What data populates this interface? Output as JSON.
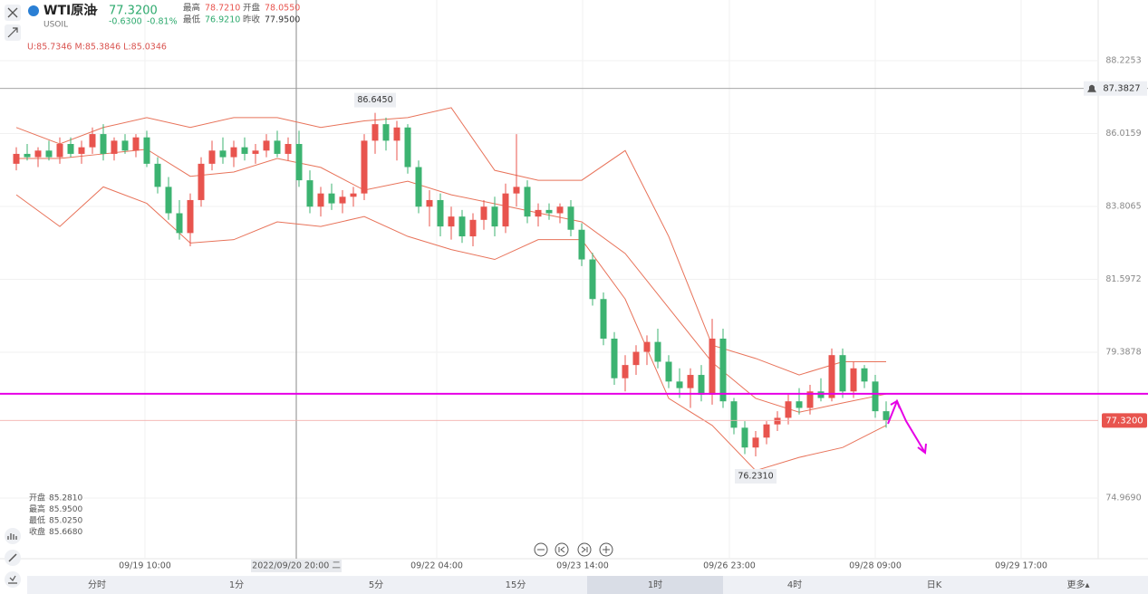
{
  "chart_data": {
    "type": "candlestick",
    "title": "WTI原油",
    "symbol": "USOIL",
    "price": "77.3200",
    "change": "-0.6300",
    "change_pct": "-0.81%",
    "stats": [
      {
        "label": "最高",
        "value": "78.7210",
        "color": "#e8544e"
      },
      {
        "label": "开盘",
        "value": "78.0550",
        "color": "#e8544e"
      },
      {
        "label": "最低",
        "value": "76.9210",
        "color": "#2eaa6e"
      },
      {
        "label": "昨收",
        "value": "77.9500",
        "color": "#333333"
      }
    ],
    "indicator": "U:85.7346   M:85.3846   L:85.0346",
    "info_panel": [
      {
        "label": "开盘",
        "value": "85.2810"
      },
      {
        "label": "最高",
        "value": "85.9500"
      },
      {
        "label": "最低",
        "value": "85.0250"
      },
      {
        "label": "收盘",
        "value": "85.6680"
      }
    ],
    "up_color": "#e8544e",
    "down_color": "#3cb371",
    "candles": [
      [
        85.1,
        85.6,
        84.9,
        85.4
      ],
      [
        85.4,
        85.7,
        85.2,
        85.3
      ],
      [
        85.3,
        85.6,
        85.0,
        85.5
      ],
      [
        85.5,
        85.8,
        85.2,
        85.3
      ],
      [
        85.3,
        85.9,
        85.1,
        85.7
      ],
      [
        85.7,
        85.9,
        85.3,
        85.4
      ],
      [
        85.4,
        85.8,
        85.1,
        85.6
      ],
      [
        85.6,
        86.2,
        85.4,
        86.0
      ],
      [
        86.0,
        86.3,
        85.2,
        85.4
      ],
      [
        85.4,
        85.9,
        85.2,
        85.8
      ],
      [
        85.8,
        86.0,
        85.4,
        85.5
      ],
      [
        85.5,
        86.0,
        85.3,
        85.9
      ],
      [
        85.9,
        86.1,
        85.0,
        85.1
      ],
      [
        85.1,
        85.3,
        84.2,
        84.4
      ],
      [
        84.4,
        84.7,
        83.4,
        83.6
      ],
      [
        83.6,
        84.0,
        82.8,
        83.0
      ],
      [
        83.0,
        84.2,
        82.6,
        84.0
      ],
      [
        84.0,
        85.3,
        83.8,
        85.1
      ],
      [
        85.1,
        85.8,
        84.9,
        85.5
      ],
      [
        85.5,
        85.9,
        85.1,
        85.3
      ],
      [
        85.3,
        85.8,
        85.0,
        85.6
      ],
      [
        85.6,
        85.9,
        85.2,
        85.4
      ],
      [
        85.4,
        85.7,
        85.1,
        85.5
      ],
      [
        85.5,
        86.0,
        85.3,
        85.8
      ],
      [
        85.8,
        86.1,
        85.3,
        85.4
      ],
      [
        85.4,
        85.9,
        85.2,
        85.7
      ],
      [
        85.7,
        86.1,
        84.4,
        84.6
      ],
      [
        84.6,
        84.9,
        83.6,
        83.8
      ],
      [
        83.8,
        84.4,
        83.5,
        84.2
      ],
      [
        84.2,
        84.5,
        83.7,
        83.9
      ],
      [
        83.9,
        84.3,
        83.6,
        84.1
      ],
      [
        84.1,
        84.4,
        83.8,
        84.2
      ],
      [
        84.2,
        86.0,
        84.0,
        85.8
      ],
      [
        85.8,
        86.645,
        85.4,
        86.3
      ],
      [
        86.3,
        86.5,
        85.5,
        85.8
      ],
      [
        85.8,
        86.4,
        85.2,
        86.2
      ],
      [
        86.2,
        86.3,
        84.8,
        85.0
      ],
      [
        85.0,
        85.2,
        83.6,
        83.8
      ],
      [
        83.8,
        84.3,
        83.2,
        84.0
      ],
      [
        84.0,
        84.2,
        82.9,
        83.2
      ],
      [
        83.2,
        83.8,
        82.8,
        83.5
      ],
      [
        83.5,
        83.7,
        82.7,
        82.9
      ],
      [
        82.9,
        83.6,
        82.6,
        83.4
      ],
      [
        83.4,
        84.0,
        83.1,
        83.8
      ],
      [
        83.8,
        84.1,
        82.9,
        83.2
      ],
      [
        83.2,
        84.5,
        83.0,
        84.2
      ],
      [
        84.2,
        86.0,
        83.8,
        84.4
      ],
      [
        84.4,
        84.6,
        83.3,
        83.5
      ],
      [
        83.5,
        83.9,
        83.2,
        83.7
      ],
      [
        83.7,
        83.9,
        83.4,
        83.6
      ],
      [
        83.6,
        83.9,
        83.3,
        83.8
      ],
      [
        83.8,
        84.0,
        82.9,
        83.1
      ],
      [
        83.1,
        83.3,
        82.0,
        82.2
      ],
      [
        82.2,
        82.4,
        80.8,
        81.0
      ],
      [
        81.0,
        81.2,
        79.6,
        79.8
      ],
      [
        79.8,
        80.0,
        78.4,
        78.6
      ],
      [
        78.6,
        79.3,
        78.2,
        79.0
      ],
      [
        79.0,
        79.6,
        78.7,
        79.4
      ],
      [
        79.4,
        79.9,
        79.0,
        79.7
      ],
      [
        79.7,
        80.1,
        78.9,
        79.1
      ],
      [
        79.1,
        79.3,
        78.3,
        78.5
      ],
      [
        78.5,
        78.9,
        78.0,
        78.3
      ],
      [
        78.3,
        78.9,
        77.7,
        78.7
      ],
      [
        78.7,
        79.0,
        77.9,
        78.1
      ],
      [
        78.1,
        80.4,
        77.8,
        79.8
      ],
      [
        79.8,
        80.1,
        77.7,
        77.9
      ],
      [
        77.9,
        78.0,
        76.9,
        77.1
      ],
      [
        77.1,
        77.3,
        76.3,
        76.5
      ],
      [
        76.5,
        77.0,
        76.231,
        76.8
      ],
      [
        76.8,
        77.3,
        76.6,
        77.2
      ],
      [
        77.2,
        77.6,
        77.0,
        77.4
      ],
      [
        77.4,
        78.1,
        77.2,
        77.9
      ],
      [
        77.9,
        78.3,
        77.5,
        77.7
      ],
      [
        77.7,
        78.4,
        77.5,
        78.2
      ],
      [
        78.2,
        78.6,
        77.9,
        78.0
      ],
      [
        78.0,
        79.5,
        77.9,
        79.3
      ],
      [
        79.3,
        79.5,
        78.0,
        78.2
      ],
      [
        78.2,
        79.1,
        78.0,
        78.9
      ],
      [
        78.9,
        79.0,
        78.3,
        78.5
      ],
      [
        78.5,
        78.7,
        77.4,
        77.6
      ],
      [
        77.6,
        77.9,
        77.1,
        77.32
      ]
    ],
    "bands": {
      "color": "#e8735a",
      "x": [
        0,
        4,
        8,
        12,
        16,
        20,
        24,
        28,
        32,
        36,
        40,
        44,
        48,
        52,
        56,
        60,
        64,
        68,
        72,
        76,
        80
      ],
      "upper": [
        86.2,
        85.7,
        86.2,
        86.5,
        86.2,
        86.5,
        86.5,
        86.2,
        86.4,
        86.5,
        86.8,
        84.9,
        84.6,
        84.6,
        85.5,
        82.9,
        79.6,
        79.2,
        78.7,
        79.1,
        79.1
      ],
      "mid": [
        85.26,
        85.26,
        85.4,
        85.54,
        84.72,
        84.85,
        85.26,
        84.99,
        84.3,
        84.57,
        84.16,
        83.89,
        83.61,
        83.34,
        82.38,
        80.73,
        79.08,
        77.99,
        77.57,
        77.85,
        78.12
      ],
      "lower": [
        84.16,
        83.2,
        84.4,
        83.9,
        82.7,
        82.8,
        83.34,
        83.2,
        83.5,
        82.9,
        82.5,
        82.2,
        82.8,
        82.8,
        81.0,
        77.99,
        77.17,
        75.8,
        76.2,
        76.5,
        77.17
      ]
    },
    "high_label": {
      "index": 33,
      "value": 86.645,
      "label": "86.6450"
    },
    "low_label": {
      "index": 68,
      "value": 76.231,
      "label": "76.2310"
    },
    "reference_line": {
      "value": 87.3827,
      "label": "87.3827"
    },
    "current_price": {
      "value": 77.32,
      "label": "77.3200"
    },
    "drawn_line": {
      "value": 78.13,
      "color": "#e600e6"
    },
    "ylim": [
      73.13,
      90.064
    ],
    "yticks": [
      88.2253,
      86.0159,
      83.8065,
      81.5972,
      79.3878,
      {
        "value": 74.969,
        "label": "74.9690"
      }
    ],
    "xlim": [
      -1.5,
      99.5
    ],
    "xticks": [
      {
        "value": 11.83,
        "label": "09/19 10:00"
      },
      {
        "value": 25.75,
        "label": "2022/09/20 20:00 二"
      },
      {
        "value": 38.67,
        "label": "09/22 04:00"
      },
      {
        "value": 52.08,
        "label": "09/23 14:00"
      },
      {
        "value": 65.58,
        "label": "09/26 23:00"
      },
      {
        "value": 79.0,
        "label": "09/28 09:00"
      },
      {
        "value": 92.42,
        "label": "09/29 17:00"
      }
    ],
    "crosshair_tick": 1,
    "tabs": [
      "分时",
      "1分",
      "5分",
      "15分",
      "1时",
      "4时",
      "日K",
      "更多▴"
    ],
    "active_tab": 4
  }
}
